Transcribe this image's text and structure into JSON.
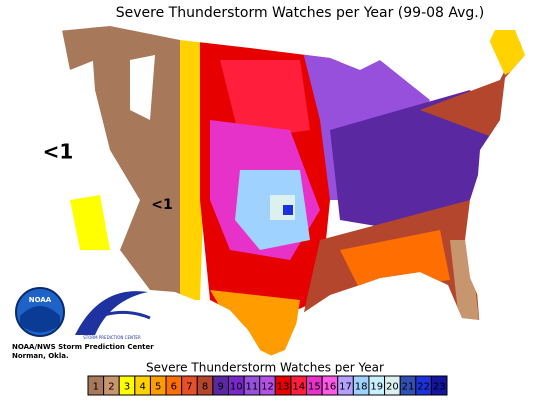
{
  "title": "Severe Thunderstorm Watches per Year (99-08 Avg.)",
  "map_labels": [
    "<1",
    "<1"
  ],
  "logos": {
    "noaa": "NOAA",
    "spc": "STORM PREDICTION CENTER"
  },
  "credit": [
    "NOAA/NWS Storm Prediction Center",
    "Norman, Okla."
  ],
  "legend": {
    "title": "Severe Thunderstorm Watches per Year",
    "items": [
      {
        "value": 1,
        "color": "#a8785a"
      },
      {
        "value": 2,
        "color": "#c8966e"
      },
      {
        "value": 3,
        "color": "#ffff00"
      },
      {
        "value": 4,
        "color": "#ffd200"
      },
      {
        "value": 5,
        "color": "#ff9c00"
      },
      {
        "value": 6,
        "color": "#ff6e00"
      },
      {
        "value": 7,
        "color": "#e65028"
      },
      {
        "value": 8,
        "color": "#b4462d"
      },
      {
        "value": 9,
        "color": "#5a28a0"
      },
      {
        "value": 10,
        "color": "#7828c8"
      },
      {
        "value": 11,
        "color": "#9650dc"
      },
      {
        "value": 12,
        "color": "#b450e6"
      },
      {
        "value": 13,
        "color": "#e60000"
      },
      {
        "value": 14,
        "color": "#ff1e3c"
      },
      {
        "value": 15,
        "color": "#e632c8"
      },
      {
        "value": 16,
        "color": "#ff5ae6"
      },
      {
        "value": 17,
        "color": "#b4a0ff"
      },
      {
        "value": 18,
        "color": "#a0d2ff"
      },
      {
        "value": 19,
        "color": "#c8f0ff"
      },
      {
        "value": 20,
        "color": "#dcf0f0"
      },
      {
        "value": 21,
        "color": "#3250b4"
      },
      {
        "value": 22,
        "color": "#1e32dc"
      },
      {
        "value": 23,
        "color": "#1414a0"
      }
    ]
  }
}
